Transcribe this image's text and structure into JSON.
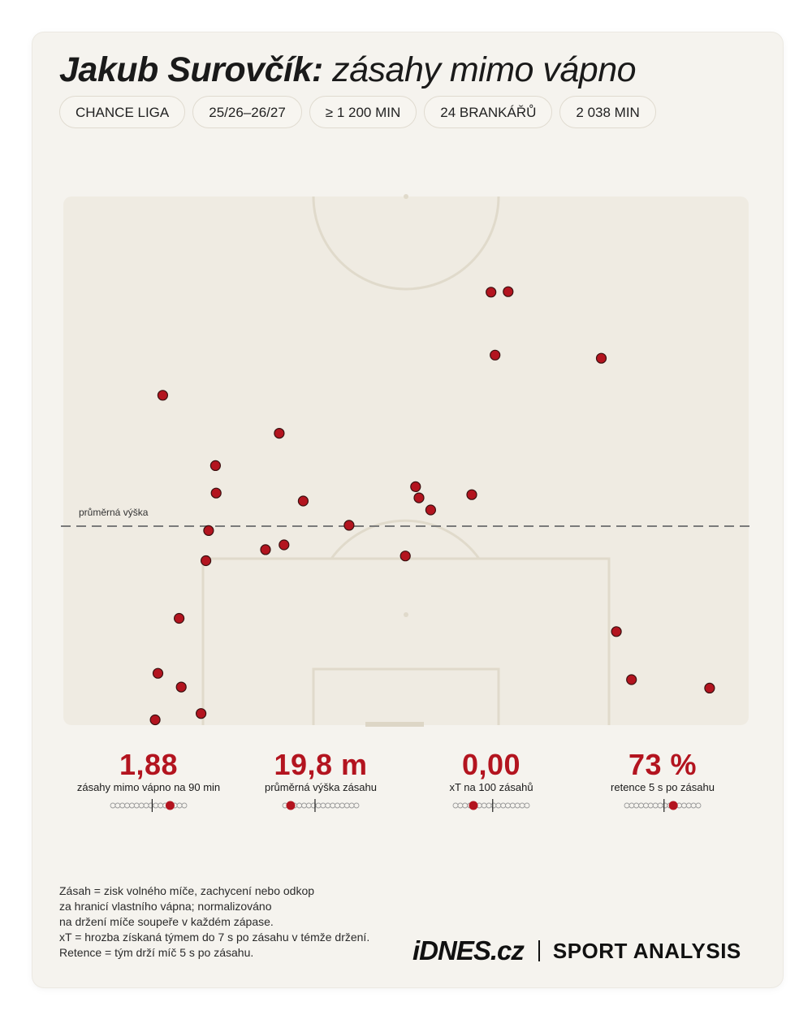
{
  "header": {
    "player_name": "Jakub Surovčík:",
    "subtitle": "zásahy mimo vápno"
  },
  "filters": [
    "CHANCE LIGA",
    "25/26–26/27",
    "≥ 1 200 MIN",
    "24 BRANKÁŘŮ",
    "2 038 MIN"
  ],
  "chart_data": {
    "type": "scatter",
    "description_units": "x 0-100 = pitch width left-to-right, y = distance up from own goal line (pitch length units 0-100)",
    "reference_line": {
      "label": "průměrná výška",
      "y": 37.5
    },
    "points": [
      {
        "x": 62.4,
        "y": 81.9
      },
      {
        "x": 64.9,
        "y": 82.0
      },
      {
        "x": 63.0,
        "y": 70.0
      },
      {
        "x": 78.5,
        "y": 69.4
      },
      {
        "x": 14.5,
        "y": 62.4
      },
      {
        "x": 31.5,
        "y": 55.2
      },
      {
        "x": 22.2,
        "y": 49.1
      },
      {
        "x": 22.3,
        "y": 43.9
      },
      {
        "x": 35.0,
        "y": 42.4
      },
      {
        "x": 51.4,
        "y": 45.1
      },
      {
        "x": 51.9,
        "y": 43.0
      },
      {
        "x": 53.6,
        "y": 40.7
      },
      {
        "x": 59.6,
        "y": 43.6
      },
      {
        "x": 41.7,
        "y": 37.8
      },
      {
        "x": 21.2,
        "y": 36.8
      },
      {
        "x": 29.5,
        "y": 33.2
      },
      {
        "x": 32.2,
        "y": 34.1
      },
      {
        "x": 49.9,
        "y": 32.0
      },
      {
        "x": 20.8,
        "y": 31.1
      },
      {
        "x": 16.9,
        "y": 20.2
      },
      {
        "x": 80.7,
        "y": 17.7
      },
      {
        "x": 13.8,
        "y": 9.8
      },
      {
        "x": 17.2,
        "y": 7.2
      },
      {
        "x": 82.9,
        "y": 8.6
      },
      {
        "x": 94.3,
        "y": 7.0
      },
      {
        "x": 20.1,
        "y": 2.2
      },
      {
        "x": 13.4,
        "y": 1.0
      }
    ]
  },
  "stats": [
    {
      "value": "1,88",
      "label": "zásahy mimo vápno na 90 min",
      "marker": 0.8,
      "avg": 0.55
    },
    {
      "value": "19,8 m",
      "label": "průměrná výška zásahu",
      "marker": 0.08,
      "avg": 0.42
    },
    {
      "value": "0,00",
      "label": "xT na 100 zásahů",
      "marker": 0.25,
      "avg": 0.52
    },
    {
      "value": "73 %",
      "label": "retence 5 s po zásahu",
      "marker": 0.65,
      "avg": 0.52
    }
  ],
  "footnote": [
    "Zásah = zisk volného míče, zachycení nebo odkop",
    "za hranicí vlastního vápna; normalizováno",
    "na držení míče soupeře v každém zápase.",
    "xT = hrozba získaná týmem do 7 s po zásahu v témže držení.",
    "Retence = tým drží míč 5 s po zásahu."
  ],
  "brand": {
    "logo": "iDNES.cz",
    "section": "SPORT ANALYSIS"
  },
  "colors": {
    "accent": "#b3141f",
    "background": "#f5f3ee",
    "pitch": "#efebe2",
    "lines": "#e0dacb"
  }
}
